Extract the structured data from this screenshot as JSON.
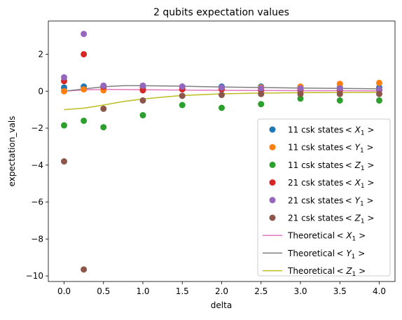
{
  "chart_data": {
    "type": "scatter",
    "title": "2 qubits expectation values",
    "xlabel": "delta",
    "ylabel": "expectation_vals",
    "xlim": [
      -0.2,
      4.2
    ],
    "ylim": [
      -10.3,
      3.8
    ],
    "xticks": [
      0.0,
      0.5,
      1.0,
      1.5,
      2.0,
      2.5,
      3.0,
      3.5,
      4.0
    ],
    "xtick_labels": [
      "0.0",
      "0.5",
      "1.0",
      "1.5",
      "2.0",
      "2.5",
      "3.0",
      "3.5",
      "4.0"
    ],
    "yticks": [
      -10,
      -8,
      -6,
      -4,
      -2,
      0,
      2
    ],
    "ytick_labels": [
      "−10",
      "−8",
      "−6",
      "−4",
      "−2",
      "0",
      "2"
    ],
    "grid": false,
    "legend_placement": "lower-right",
    "scatter_series": [
      {
        "name": "11 csk states",
        "operator": "X",
        "color": "#1f77b4",
        "points": [
          [
            0.0,
            0.2
          ],
          [
            0.25,
            0.25
          ],
          [
            0.5,
            0.2
          ],
          [
            1.0,
            0.2
          ],
          [
            1.5,
            0.25
          ],
          [
            2.0,
            0.25
          ],
          [
            2.5,
            0.25
          ],
          [
            3.0,
            0.2
          ],
          [
            3.5,
            0.2
          ],
          [
            4.0,
            0.2
          ]
        ]
      },
      {
        "name": "11 csk states",
        "operator": "Y",
        "color": "#ff7f0e",
        "points": [
          [
            0.0,
            0.0
          ],
          [
            0.25,
            0.1
          ],
          [
            0.5,
            0.05
          ],
          [
            1.0,
            0.1
          ],
          [
            1.5,
            0.15
          ],
          [
            2.0,
            0.15
          ],
          [
            2.5,
            0.2
          ],
          [
            3.0,
            0.25
          ],
          [
            3.5,
            0.4
          ],
          [
            4.0,
            0.45
          ]
        ]
      },
      {
        "name": "11 csk states",
        "operator": "Z",
        "color": "#2ca02c",
        "points": [
          [
            0.0,
            -1.85
          ],
          [
            0.25,
            -1.6
          ],
          [
            0.5,
            -1.95
          ],
          [
            1.0,
            -1.3
          ],
          [
            1.5,
            -0.75
          ],
          [
            2.0,
            -0.9
          ],
          [
            2.5,
            -0.7
          ],
          [
            3.0,
            -0.4
          ],
          [
            3.5,
            -0.5
          ],
          [
            4.0,
            -0.5
          ]
        ]
      },
      {
        "name": "21 csk states",
        "operator": "X",
        "color": "#d62728",
        "points": [
          [
            0.0,
            0.55
          ],
          [
            0.25,
            2.0
          ],
          [
            0.5,
            0.25
          ],
          [
            1.0,
            0.05
          ],
          [
            1.5,
            0.1
          ],
          [
            2.0,
            0.1
          ],
          [
            2.5,
            0.05
          ],
          [
            3.0,
            0.05
          ],
          [
            3.5,
            0.05
          ],
          [
            4.0,
            0.05
          ]
        ]
      },
      {
        "name": "21 csk states",
        "operator": "Y",
        "color": "#9467bd",
        "points": [
          [
            0.0,
            0.75
          ],
          [
            0.25,
            3.1
          ],
          [
            0.5,
            0.3
          ],
          [
            1.0,
            0.3
          ],
          [
            1.5,
            0.25
          ],
          [
            2.0,
            0.2
          ],
          [
            2.5,
            0.15
          ],
          [
            3.0,
            0.15
          ],
          [
            3.5,
            0.15
          ],
          [
            4.0,
            0.1
          ]
        ]
      },
      {
        "name": "21 csk states",
        "operator": "Z",
        "color": "#8c564b",
        "points": [
          [
            0.0,
            -3.8
          ],
          [
            0.25,
            -9.65
          ],
          [
            0.5,
            -0.95
          ],
          [
            1.0,
            -0.5
          ],
          [
            1.5,
            -0.25
          ],
          [
            2.0,
            -0.2
          ],
          [
            2.5,
            -0.15
          ],
          [
            3.0,
            -0.15
          ],
          [
            3.5,
            -0.15
          ],
          [
            4.0,
            -0.15
          ]
        ]
      }
    ],
    "line_series": [
      {
        "name": "Theoretical",
        "operator": "X",
        "color": "#e377c2",
        "points": [
          [
            0.0,
            0.0
          ],
          [
            0.25,
            0.07
          ],
          [
            0.5,
            0.1
          ],
          [
            0.75,
            0.09
          ],
          [
            1.0,
            0.08
          ],
          [
            1.5,
            0.06
          ],
          [
            2.0,
            0.05
          ],
          [
            2.5,
            0.04
          ],
          [
            3.0,
            0.03
          ],
          [
            3.5,
            0.03
          ],
          [
            4.0,
            0.02
          ]
        ]
      },
      {
        "name": "Theoretical",
        "operator": "Y",
        "color": "#7f7f7f",
        "points": [
          [
            0.0,
            0.0
          ],
          [
            0.25,
            0.12
          ],
          [
            0.5,
            0.24
          ],
          [
            0.75,
            0.3
          ],
          [
            1.0,
            0.3
          ],
          [
            1.5,
            0.27
          ],
          [
            2.0,
            0.23
          ],
          [
            2.5,
            0.2
          ],
          [
            3.0,
            0.17
          ],
          [
            3.5,
            0.15
          ],
          [
            4.0,
            0.13
          ]
        ]
      },
      {
        "name": "Theoretical",
        "operator": "Z",
        "color": "#bcbd22",
        "points": [
          [
            0.0,
            -1.0
          ],
          [
            0.25,
            -0.92
          ],
          [
            0.5,
            -0.75
          ],
          [
            0.75,
            -0.56
          ],
          [
            1.0,
            -0.42
          ],
          [
            1.25,
            -0.32
          ],
          [
            1.5,
            -0.23
          ],
          [
            2.0,
            -0.14
          ],
          [
            2.5,
            -0.1
          ],
          [
            3.0,
            -0.08
          ],
          [
            3.5,
            -0.07
          ],
          [
            4.0,
            -0.06
          ]
        ]
      }
    ]
  }
}
